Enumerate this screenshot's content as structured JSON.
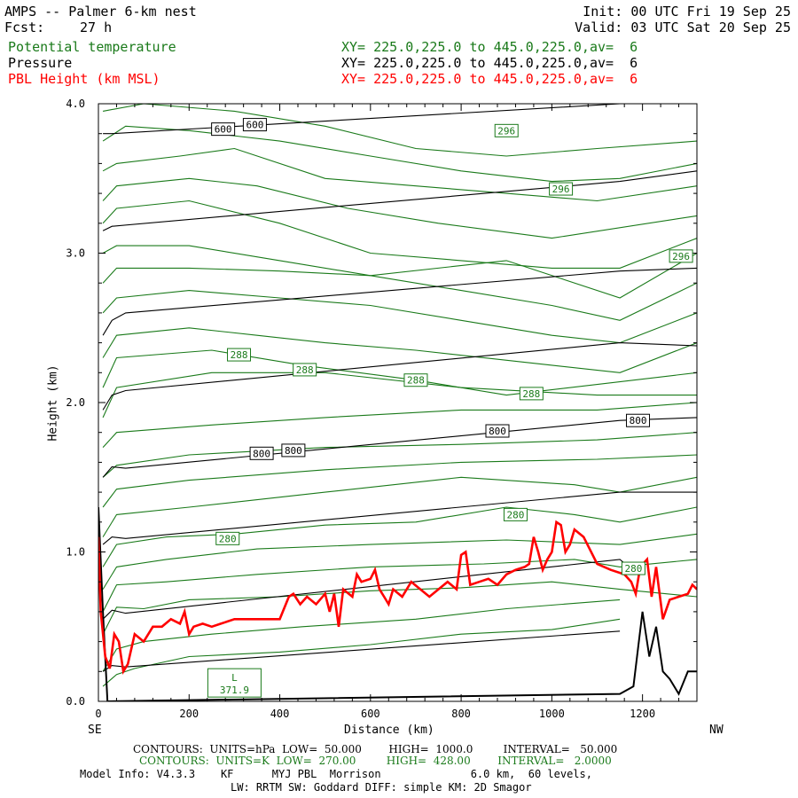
{
  "header": {
    "title": "AMPS -- Palmer 6-km nest",
    "fcst_label": "Fcst:",
    "fcst_value": "27 h",
    "init": "Init: 00 UTC Fri 19 Sep 25",
    "valid": "Valid: 03 UTC Sat 20 Sep 25",
    "fields": [
      {
        "name": "Potential temperature",
        "xy": "XY= 225.0,225.0 to 445.0,225.0,av=  6",
        "color": "#1a7a1a"
      },
      {
        "name": "Pressure",
        "xy": "XY= 225.0,225.0 to 445.0,225.0,av=  6",
        "color": "#000000"
      },
      {
        "name": "PBL Height (km MSL)",
        "xy": "XY= 225.0,225.0 to 445.0,225.0,av=  6",
        "color": "#ff0000"
      }
    ]
  },
  "footer": {
    "contours_p": "CONTOURS:  UNITS=hPa  LOW=  50.000        HIGH=  1000.0         INTERVAL=   50.000",
    "contours_t": "CONTOURS:  UNITS=K  LOW=  270.00         HIGH=  428.00        INTERVAL=   2.0000",
    "model_info": "Model Info: V4.3.3    KF      MYJ PBL  Morrison              6.0 km,  60 levels,",
    "model_info2": "LW: RRTM SW: Goddard DIFF: simple KM: 2D Smagor"
  },
  "chart_data": {
    "type": "line",
    "xlabel": "Distance (km)",
    "ylabel": "Height (km)",
    "xlim": [
      0,
      1320
    ],
    "ylim": [
      0,
      4.0
    ],
    "x_ticks": [
      0,
      200,
      400,
      600,
      800,
      1000,
      1200
    ],
    "y_ticks": [
      "0.0",
      "1.0",
      "2.0",
      "3.0",
      "4.0"
    ],
    "x_end_labels": {
      "left": "SE",
      "right": "NW"
    },
    "colors": {
      "theta": "#1a7a1a",
      "pressure": "#000000",
      "pbl": "#ff0000"
    },
    "pressure_contour_labels": [
      {
        "text": "600",
        "x": 275,
        "y": 3.83
      },
      {
        "text": "600",
        "x": 345,
        "y": 3.86
      },
      {
        "text": "800",
        "x": 360,
        "y": 1.66
      },
      {
        "text": "800",
        "x": 430,
        "y": 1.68
      },
      {
        "text": "800",
        "x": 880,
        "y": 1.81
      },
      {
        "text": "800",
        "x": 1190,
        "y": 1.88
      }
    ],
    "theta_contour_labels": [
      {
        "text": "296",
        "x": 900,
        "y": 3.82
      },
      {
        "text": "296",
        "x": 1020,
        "y": 3.43
      },
      {
        "text": "296",
        "x": 1285,
        "y": 2.98
      },
      {
        "text": "288",
        "x": 310,
        "y": 2.32
      },
      {
        "text": "288",
        "x": 455,
        "y": 2.22
      },
      {
        "text": "288",
        "x": 700,
        "y": 2.15
      },
      {
        "text": "288",
        "x": 955,
        "y": 2.06
      },
      {
        "text": "280",
        "x": 285,
        "y": 1.09
      },
      {
        "text": "280",
        "x": 920,
        "y": 1.25
      },
      {
        "text": "280",
        "x": 1180,
        "y": 0.89
      }
    ],
    "low_label": {
      "text": "L",
      "value": "371.9",
      "x": 300,
      "y": 0.1
    },
    "pressure_lines": [
      [
        [
          10,
          0.2
        ],
        [
          30,
          0.24
        ],
        [
          60,
          0.23
        ],
        [
          1150,
          0.47
        ]
      ],
      [
        [
          10,
          0.55
        ],
        [
          30,
          0.61
        ],
        [
          60,
          0.59
        ],
        [
          1150,
          0.95
        ],
        [
          1190,
          0.85
        ]
      ],
      [
        [
          10,
          1.05
        ],
        [
          30,
          1.1
        ],
        [
          60,
          1.09
        ],
        [
          1150,
          1.4
        ],
        [
          1320,
          1.4
        ]
      ],
      [
        [
          10,
          1.5
        ],
        [
          30,
          1.57
        ],
        [
          60,
          1.56
        ],
        [
          1150,
          1.88
        ],
        [
          1320,
          1.9
        ]
      ],
      [
        [
          10,
          1.95
        ],
        [
          30,
          2.05
        ],
        [
          60,
          2.08
        ],
        [
          1150,
          2.4
        ],
        [
          1320,
          2.38
        ]
      ],
      [
        [
          10,
          2.45
        ],
        [
          30,
          2.55
        ],
        [
          60,
          2.6
        ],
        [
          1150,
          2.88
        ],
        [
          1320,
          2.9
        ]
      ],
      [
        [
          10,
          3.15
        ],
        [
          30,
          3.18
        ],
        [
          1150,
          3.48
        ],
        [
          1320,
          3.55
        ]
      ],
      [
        [
          10,
          3.8
        ],
        [
          30,
          3.8
        ],
        [
          1150,
          4.05
        ]
      ]
    ],
    "theta_lines": [
      [
        [
          10,
          0.1
        ],
        [
          40,
          0.18
        ],
        [
          80,
          0.22
        ],
        [
          200,
          0.3
        ],
        [
          400,
          0.33
        ],
        [
          600,
          0.38
        ],
        [
          800,
          0.45
        ],
        [
          1000,
          0.48
        ],
        [
          1150,
          0.55
        ]
      ],
      [
        [
          10,
          0.2
        ],
        [
          40,
          0.35
        ],
        [
          100,
          0.4
        ],
        [
          250,
          0.45
        ],
        [
          450,
          0.5
        ],
        [
          700,
          0.55
        ],
        [
          900,
          0.62
        ],
        [
          1150,
          0.68
        ]
      ],
      [
        [
          10,
          0.45
        ],
        [
          40,
          0.63
        ],
        [
          100,
          0.62
        ],
        [
          200,
          0.68
        ],
        [
          400,
          0.7
        ],
        [
          600,
          0.74
        ],
        [
          800,
          0.76
        ],
        [
          1000,
          0.8
        ],
        [
          1150,
          0.75
        ],
        [
          1320,
          0.7
        ]
      ],
      [
        [
          10,
          0.6
        ],
        [
          40,
          0.78
        ],
        [
          150,
          0.8
        ],
        [
          350,
          0.85
        ],
        [
          600,
          0.9
        ],
        [
          850,
          0.92
        ],
        [
          1050,
          0.95
        ],
        [
          1150,
          0.9
        ],
        [
          1320,
          0.95
        ]
      ],
      [
        [
          10,
          0.75
        ],
        [
          40,
          0.9
        ],
        [
          150,
          0.95
        ],
        [
          350,
          1.02
        ],
        [
          600,
          1.05
        ],
        [
          900,
          1.08
        ],
        [
          1150,
          1.05
        ],
        [
          1320,
          1.12
        ]
      ],
      [
        [
          10,
          0.9
        ],
        [
          40,
          1.05
        ],
        [
          150,
          1.1
        ],
        [
          300,
          1.12
        ],
        [
          500,
          1.18
        ],
        [
          700,
          1.2
        ],
        [
          900,
          1.3
        ],
        [
          1050,
          1.25
        ],
        [
          1150,
          1.2
        ],
        [
          1320,
          1.3
        ]
      ],
      [
        [
          10,
          1.1
        ],
        [
          40,
          1.25
        ],
        [
          200,
          1.3
        ],
        [
          500,
          1.4
        ],
        [
          800,
          1.5
        ],
        [
          1050,
          1.45
        ],
        [
          1150,
          1.4
        ],
        [
          1320,
          1.5
        ]
      ],
      [
        [
          10,
          1.3
        ],
        [
          40,
          1.42
        ],
        [
          200,
          1.48
        ],
        [
          500,
          1.55
        ],
        [
          800,
          1.6
        ],
        [
          1100,
          1.62
        ],
        [
          1320,
          1.65
        ]
      ],
      [
        [
          10,
          1.5
        ],
        [
          40,
          1.58
        ],
        [
          200,
          1.65
        ],
        [
          500,
          1.7
        ],
        [
          800,
          1.72
        ],
        [
          1100,
          1.75
        ],
        [
          1320,
          1.8
        ]
      ],
      [
        [
          10,
          1.7
        ],
        [
          40,
          1.8
        ],
        [
          250,
          1.85
        ],
        [
          500,
          1.9
        ],
        [
          800,
          1.95
        ],
        [
          1100,
          1.95
        ],
        [
          1320,
          2.0
        ]
      ],
      [
        [
          10,
          1.9
        ],
        [
          40,
          2.1
        ],
        [
          250,
          2.2
        ],
        [
          500,
          2.2
        ],
        [
          800,
          2.1
        ],
        [
          1100,
          2.05
        ],
        [
          1320,
          2.05
        ]
      ],
      [
        [
          10,
          2.1
        ],
        [
          40,
          2.3
        ],
        [
          250,
          2.35
        ],
        [
          450,
          2.25
        ],
        [
          700,
          2.15
        ],
        [
          900,
          2.05
        ],
        [
          1320,
          2.2
        ]
      ],
      [
        [
          10,
          2.3
        ],
        [
          40,
          2.45
        ],
        [
          200,
          2.5
        ],
        [
          350,
          2.45
        ],
        [
          500,
          2.4
        ],
        [
          700,
          2.35
        ],
        [
          1000,
          2.25
        ],
        [
          1150,
          2.2
        ],
        [
          1320,
          2.4
        ]
      ],
      [
        [
          10,
          2.6
        ],
        [
          40,
          2.7
        ],
        [
          200,
          2.75
        ],
        [
          400,
          2.7
        ],
        [
          600,
          2.65
        ],
        [
          800,
          2.55
        ],
        [
          1000,
          2.45
        ],
        [
          1150,
          2.4
        ],
        [
          1320,
          2.6
        ]
      ],
      [
        [
          10,
          2.8
        ],
        [
          40,
          2.9
        ],
        [
          200,
          2.9
        ],
        [
          400,
          2.88
        ],
        [
          600,
          2.85
        ],
        [
          800,
          2.75
        ],
        [
          1000,
          2.65
        ],
        [
          1150,
          2.55
        ],
        [
          1320,
          2.8
        ]
      ],
      [
        [
          10,
          3.0
        ],
        [
          40,
          3.05
        ],
        [
          200,
          3.05
        ],
        [
          400,
          2.95
        ],
        [
          600,
          2.85
        ],
        [
          900,
          2.95
        ],
        [
          1150,
          2.7
        ],
        [
          1320,
          3.0
        ]
      ],
      [
        [
          10,
          3.2
        ],
        [
          40,
          3.3
        ],
        [
          200,
          3.35
        ],
        [
          400,
          3.2
        ],
        [
          600,
          3.0
        ],
        [
          800,
          2.95
        ],
        [
          1000,
          2.9
        ],
        [
          1150,
          2.9
        ],
        [
          1320,
          3.1
        ]
      ],
      [
        [
          10,
          3.35
        ],
        [
          40,
          3.45
        ],
        [
          200,
          3.5
        ],
        [
          350,
          3.45
        ],
        [
          550,
          3.3
        ],
        [
          750,
          3.2
        ],
        [
          1000,
          3.1
        ],
        [
          1320,
          3.25
        ]
      ],
      [
        [
          10,
          3.55
        ],
        [
          40,
          3.6
        ],
        [
          180,
          3.65
        ],
        [
          300,
          3.7
        ],
        [
          500,
          3.5
        ],
        [
          700,
          3.45
        ],
        [
          900,
          3.4
        ],
        [
          1100,
          3.35
        ],
        [
          1320,
          3.45
        ]
      ],
      [
        [
          10,
          3.75
        ],
        [
          60,
          3.85
        ],
        [
          200,
          3.82
        ],
        [
          400,
          3.75
        ],
        [
          600,
          3.65
        ],
        [
          800,
          3.55
        ],
        [
          1000,
          3.48
        ],
        [
          1150,
          3.5
        ],
        [
          1320,
          3.6
        ]
      ],
      [
        [
          10,
          3.95
        ],
        [
          100,
          4.0
        ],
        [
          300,
          3.95
        ],
        [
          500,
          3.85
        ],
        [
          700,
          3.7
        ],
        [
          900,
          3.65
        ],
        [
          1100,
          3.7
        ],
        [
          1320,
          3.75
        ]
      ]
    ],
    "terrain_line": [
      [
        0,
        1.3
      ],
      [
        10,
        0.6
      ],
      [
        20,
        0.0
      ],
      [
        1150,
        0.05
      ],
      [
        1180,
        0.1
      ],
      [
        1200,
        0.6
      ],
      [
        1215,
        0.3
      ],
      [
        1230,
        0.5
      ],
      [
        1245,
        0.2
      ],
      [
        1260,
        0.15
      ],
      [
        1280,
        0.05
      ],
      [
        1300,
        0.2
      ],
      [
        1320,
        0.2
      ]
    ],
    "pbl_height": [
      [
        0,
        1.1
      ],
      [
        5,
        0.6
      ],
      [
        15,
        0.3
      ],
      [
        25,
        0.22
      ],
      [
        35,
        0.45
      ],
      [
        45,
        0.4
      ],
      [
        55,
        0.2
      ],
      [
        65,
        0.25
      ],
      [
        80,
        0.45
      ],
      [
        100,
        0.4
      ],
      [
        120,
        0.5
      ],
      [
        140,
        0.5
      ],
      [
        160,
        0.55
      ],
      [
        180,
        0.52
      ],
      [
        190,
        0.6
      ],
      [
        200,
        0.45
      ],
      [
        210,
        0.5
      ],
      [
        230,
        0.52
      ],
      [
        250,
        0.5
      ],
      [
        270,
        0.52
      ],
      [
        300,
        0.55
      ],
      [
        350,
        0.55
      ],
      [
        400,
        0.55
      ],
      [
        420,
        0.7
      ],
      [
        430,
        0.72
      ],
      [
        445,
        0.65
      ],
      [
        460,
        0.7
      ],
      [
        480,
        0.65
      ],
      [
        500,
        0.72
      ],
      [
        510,
        0.6
      ],
      [
        520,
        0.72
      ],
      [
        530,
        0.5
      ],
      [
        540,
        0.75
      ],
      [
        560,
        0.7
      ],
      [
        570,
        0.85
      ],
      [
        580,
        0.8
      ],
      [
        600,
        0.82
      ],
      [
        610,
        0.88
      ],
      [
        620,
        0.75
      ],
      [
        630,
        0.7
      ],
      [
        640,
        0.65
      ],
      [
        650,
        0.75
      ],
      [
        670,
        0.7
      ],
      [
        690,
        0.8
      ],
      [
        710,
        0.75
      ],
      [
        730,
        0.7
      ],
      [
        750,
        0.75
      ],
      [
        770,
        0.8
      ],
      [
        790,
        0.75
      ],
      [
        800,
        0.98
      ],
      [
        810,
        1.0
      ],
      [
        820,
        0.78
      ],
      [
        840,
        0.8
      ],
      [
        860,
        0.82
      ],
      [
        880,
        0.78
      ],
      [
        900,
        0.85
      ],
      [
        920,
        0.88
      ],
      [
        940,
        0.9
      ],
      [
        950,
        0.92
      ],
      [
        960,
        1.1
      ],
      [
        970,
        1.0
      ],
      [
        980,
        0.88
      ],
      [
        990,
        0.95
      ],
      [
        1000,
        1.0
      ],
      [
        1010,
        1.2
      ],
      [
        1020,
        1.18
      ],
      [
        1030,
        1.0
      ],
      [
        1040,
        1.05
      ],
      [
        1050,
        1.15
      ],
      [
        1070,
        1.1
      ],
      [
        1100,
        0.92
      ],
      [
        1130,
        0.88
      ],
      [
        1160,
        0.85
      ],
      [
        1175,
        0.8
      ],
      [
        1185,
        0.72
      ],
      [
        1195,
        0.9
      ],
      [
        1210,
        0.95
      ],
      [
        1220,
        0.7
      ],
      [
        1230,
        0.9
      ],
      [
        1245,
        0.55
      ],
      [
        1260,
        0.68
      ],
      [
        1280,
        0.7
      ],
      [
        1300,
        0.72
      ],
      [
        1310,
        0.78
      ],
      [
        1320,
        0.75
      ]
    ]
  }
}
